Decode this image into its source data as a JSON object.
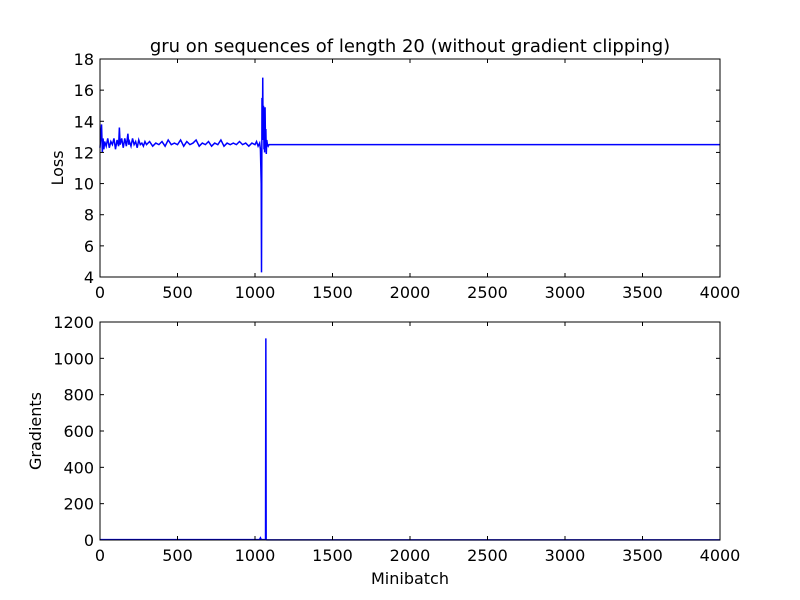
{
  "colors": {
    "series": "#0000ff",
    "axes": "#000000",
    "background": "#ffffff"
  },
  "chart_data": [
    {
      "type": "line",
      "title": "gru on sequences of length 20 (without gradient clipping)",
      "xlabel": "",
      "ylabel": "Loss",
      "xlim": [
        0,
        4000
      ],
      "ylim": [
        4,
        18
      ],
      "xticks": [
        "0",
        "500",
        "1000",
        "1500",
        "2000",
        "2500",
        "3000",
        "3500",
        "4000"
      ],
      "yticks": [
        "4",
        "6",
        "8",
        "10",
        "12",
        "14",
        "16",
        "18"
      ],
      "grid": false,
      "series": [
        {
          "color": "#0000ff",
          "x": [
            0,
            10,
            15,
            20,
            25,
            30,
            40,
            50,
            60,
            70,
            80,
            90,
            100,
            110,
            120,
            125,
            130,
            140,
            150,
            160,
            170,
            180,
            185,
            190,
            200,
            210,
            220,
            230,
            240,
            250,
            260,
            270,
            280,
            290,
            300,
            320,
            340,
            360,
            380,
            400,
            420,
            440,
            460,
            480,
            500,
            520,
            540,
            560,
            580,
            600,
            620,
            640,
            660,
            680,
            700,
            720,
            740,
            760,
            780,
            800,
            820,
            840,
            860,
            880,
            900,
            920,
            940,
            960,
            980,
            1000,
            1010,
            1020,
            1030,
            1035,
            1040,
            1042,
            1045,
            1048,
            1050,
            1052,
            1055,
            1058,
            1060,
            1062,
            1065,
            1068,
            1070,
            1073,
            1076,
            1080,
            1085,
            1090,
            1100,
            1200,
            1300,
            1400,
            1500,
            1600,
            1700,
            1800,
            1900,
            2000,
            2100,
            2200,
            2300,
            2400,
            2500,
            2600,
            2700,
            2800,
            2900,
            3000,
            3100,
            3200,
            3300,
            3400,
            3500,
            3600,
            3700,
            3800,
            3900,
            4000
          ],
          "y": [
            12.3,
            13.8,
            12.0,
            12.9,
            12.2,
            12.7,
            12.4,
            12.9,
            12.3,
            12.7,
            12.5,
            12.9,
            12.2,
            12.8,
            12.4,
            13.6,
            12.5,
            12.9,
            12.3,
            12.9,
            12.4,
            13.2,
            12.5,
            12.7,
            12.4,
            12.9,
            12.5,
            12.7,
            12.3,
            12.8,
            12.5,
            12.6,
            12.4,
            12.7,
            12.5,
            12.7,
            12.4,
            12.6,
            12.5,
            12.7,
            12.4,
            12.8,
            12.5,
            12.6,
            12.5,
            12.8,
            12.4,
            12.7,
            12.5,
            12.6,
            12.8,
            12.4,
            12.6,
            12.5,
            12.7,
            12.4,
            12.6,
            12.5,
            12.8,
            12.4,
            12.6,
            12.5,
            12.6,
            12.5,
            12.7,
            12.5,
            12.6,
            12.4,
            12.6,
            12.5,
            12.7,
            12.4,
            12.6,
            12.2,
            10.0,
            4.3,
            15.5,
            12.8,
            16.8,
            13.0,
            15.0,
            12.2,
            13.8,
            12.0,
            14.9,
            12.3,
            13.5,
            11.9,
            12.8,
            12.5,
            12.4,
            12.5,
            12.5,
            12.5,
            12.5,
            12.5,
            12.5,
            12.5,
            12.5,
            12.5,
            12.5,
            12.5,
            12.5,
            12.5,
            12.5,
            12.5,
            12.5,
            12.5,
            12.5,
            12.5,
            12.5,
            12.5,
            12.5,
            12.5,
            12.5,
            12.5,
            12.5,
            12.5,
            12.5,
            12.5,
            12.5,
            12.5
          ]
        }
      ]
    },
    {
      "type": "line",
      "title": "",
      "xlabel": "Minibatch",
      "ylabel": "Gradients",
      "xlim": [
        0,
        4000
      ],
      "ylim": [
        0,
        1200
      ],
      "xticks": [
        "0",
        "500",
        "1000",
        "1500",
        "2000",
        "2500",
        "3000",
        "3500",
        "4000"
      ],
      "yticks": [
        "0",
        "200",
        "400",
        "600",
        "800",
        "1000",
        "1200"
      ],
      "grid": false,
      "series": [
        {
          "color": "#0000ff",
          "x": [
            0,
            200,
            400,
            600,
            800,
            1000,
            1030,
            1035,
            1040,
            1050,
            1060,
            1068,
            1070,
            1072,
            1075,
            1080,
            1200,
            1600,
            2000,
            2500,
            3000,
            3500,
            4000
          ],
          "y": [
            2,
            2,
            2,
            2,
            2,
            2,
            3,
            12,
            3,
            2,
            2,
            2,
            1110,
            2,
            1,
            1,
            1,
            1,
            1,
            1,
            1,
            1,
            1
          ]
        }
      ]
    }
  ]
}
